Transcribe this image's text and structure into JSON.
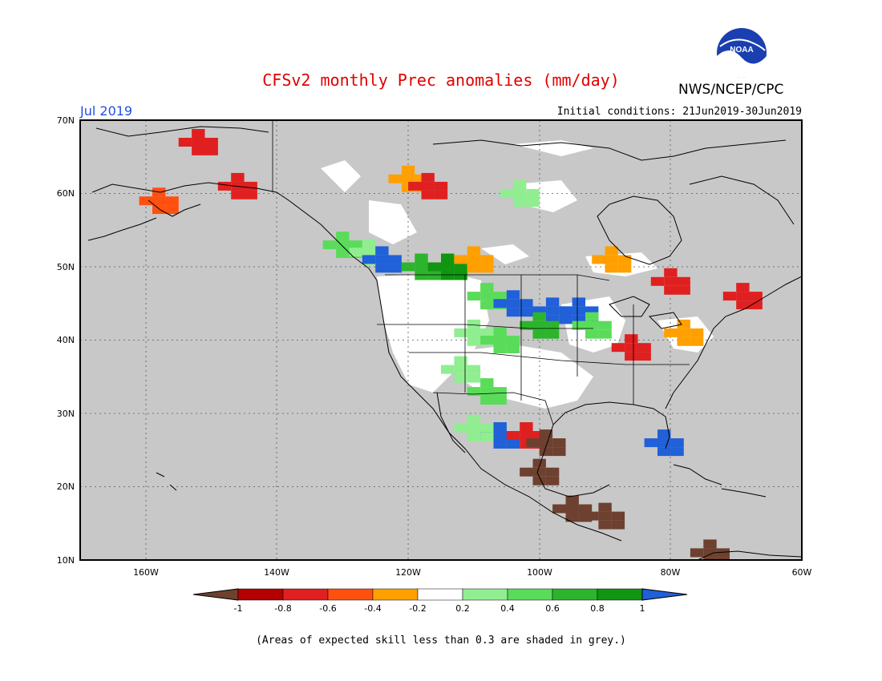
{
  "header": {
    "title": "CFSv2 monthly Prec anomalies (mm/day)",
    "agency": "NWS/NCEP/CPC",
    "logo_text": "NOAA",
    "target_month": "Jul 2019",
    "initial_conditions": "Initial conditions: 21Jun2019-30Jun2019"
  },
  "map": {
    "lat_labels": [
      "70N",
      "60N",
      "50N",
      "40N",
      "30N",
      "20N",
      "10N"
    ],
    "lon_labels": [
      "160W",
      "140W",
      "120W",
      "100W",
      "80W",
      "60W"
    ],
    "background_color": "#c8c8c8",
    "lat_range": [
      10,
      70
    ],
    "lon_range": [
      -170,
      -60
    ]
  },
  "legend": {
    "labels": [
      "-1",
      "-0.8",
      "-0.6",
      "-0.4",
      "-0.2",
      "0.2",
      "0.4",
      "0.6",
      "0.8",
      "1"
    ],
    "colors": [
      "#6e4030",
      "#b40000",
      "#e02020",
      "#ff5010",
      "#ffa000",
      "#ffffff",
      "#90ee90",
      "#5adc5a",
      "#2cb42c",
      "#109610",
      "#2060d8"
    ]
  },
  "footnote": "(Areas of expected skill less than 0.3 are shaded in grey.)",
  "anomaly_regions": [
    {
      "lon": -130,
      "lat": 53,
      "value": 0.5
    },
    {
      "lon": -126,
      "lat": 52,
      "value": 0.3
    },
    {
      "lon": -124,
      "lat": 51,
      "value": 1.1
    },
    {
      "lon": -118,
      "lat": 50,
      "value": 0.7
    },
    {
      "lon": -114,
      "lat": 50,
      "value": 0.9
    },
    {
      "lon": -108,
      "lat": 46,
      "value": 0.5
    },
    {
      "lon": -104,
      "lat": 45,
      "value": 1.1
    },
    {
      "lon": -98,
      "lat": 44,
      "value": 1.1
    },
    {
      "lon": -94,
      "lat": 44,
      "value": 1.1
    },
    {
      "lon": -100,
      "lat": 42,
      "value": 0.7
    },
    {
      "lon": -92,
      "lat": 42,
      "value": 0.5
    },
    {
      "lon": -110,
      "lat": 41,
      "value": 0.3
    },
    {
      "lon": -106,
      "lat": 40,
      "value": 0.5
    },
    {
      "lon": -112,
      "lat": 36,
      "value": 0.3
    },
    {
      "lon": -108,
      "lat": 33,
      "value": 0.5
    },
    {
      "lon": -106,
      "lat": 27,
      "value": 1.1
    },
    {
      "lon": -110,
      "lat": 28,
      "value": 0.3
    },
    {
      "lon": -102,
      "lat": 27,
      "value": -0.7
    },
    {
      "lon": -99,
      "lat": 26,
      "value": -1.1
    },
    {
      "lon": -100,
      "lat": 22,
      "value": -1.1
    },
    {
      "lon": -95,
      "lat": 17,
      "value": -1.1
    },
    {
      "lon": -90,
      "lat": 16,
      "value": -1.1
    },
    {
      "lon": -120,
      "lat": 62,
      "value": -0.3
    },
    {
      "lon": -117,
      "lat": 61,
      "value": -0.7
    },
    {
      "lon": -152,
      "lat": 67,
      "value": -0.7
    },
    {
      "lon": -146,
      "lat": 61,
      "value": -0.7
    },
    {
      "lon": -158,
      "lat": 59,
      "value": -0.5
    },
    {
      "lon": -103,
      "lat": 60,
      "value": 0.3
    },
    {
      "lon": -110,
      "lat": 51,
      "value": -0.3
    },
    {
      "lon": -89,
      "lat": 51,
      "value": -0.3
    },
    {
      "lon": -80,
      "lat": 48,
      "value": -0.7
    },
    {
      "lon": -69,
      "lat": 46,
      "value": -0.7
    },
    {
      "lon": -78,
      "lat": 41,
      "value": -0.3
    },
    {
      "lon": -86,
      "lat": 39,
      "value": -0.7
    },
    {
      "lon": -81,
      "lat": 26,
      "value": 1.1
    },
    {
      "lon": -74,
      "lat": 11,
      "value": -1.1
    }
  ]
}
